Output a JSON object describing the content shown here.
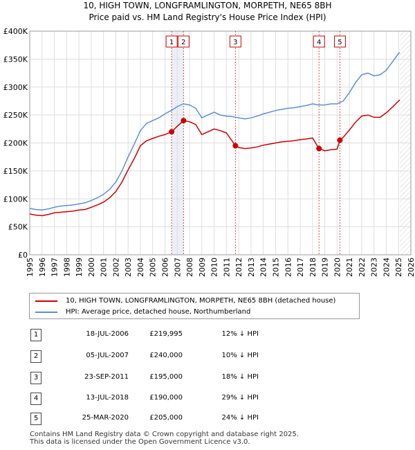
{
  "title_line1": "10, HIGH TOWN, LONGFRAMLINGTON, MORPETH, NE65 8BH",
  "title_line2": "Price paid vs. HM Land Registry's House Price Index (HPI)",
  "colors": {
    "property": "#cc0000",
    "hpi": "#5b8fd6",
    "shade": "#dde6f3",
    "grid": "#dddddd",
    "marker_line": "#cc0000"
  },
  "legend": {
    "property_label": "10, HIGH TOWN, LONGFRAMLINGTON, MORPETH, NE65 8BH (detached house)",
    "hpi_label": "HPI: Average price, detached house, Northumberland"
  },
  "transactions": [
    {
      "num": "1",
      "date": "18-JUL-2006",
      "price": "£219,995",
      "diff": "12% ↓ HPI"
    },
    {
      "num": "2",
      "date": "05-JUL-2007",
      "price": "£240,000",
      "diff": "10% ↓ HPI"
    },
    {
      "num": "3",
      "date": "23-SEP-2011",
      "price": "£195,000",
      "diff": "18% ↓ HPI"
    },
    {
      "num": "4",
      "date": "13-JUL-2018",
      "price": "£190,000",
      "diff": "29% ↓ HPI"
    },
    {
      "num": "5",
      "date": "25-MAR-2020",
      "price": "£205,000",
      "diff": "24% ↓ HPI"
    }
  ],
  "footer": "Contains HM Land Registry data © Crown copyright and database right 2025.\nThis data is licensed under the Open Government Licence v3.0.",
  "chart_data": {
    "type": "line",
    "title": "10, HIGH TOWN, LONGFRAMLINGTON, MORPETH, NE65 8BH — Price paid vs. HM Land Registry's House Price Index (HPI)",
    "xlim": [
      1995,
      2026
    ],
    "ylim": [
      0,
      400000
    ],
    "x_ticks": [
      1995,
      1996,
      1997,
      1998,
      1999,
      2000,
      2001,
      2002,
      2003,
      2004,
      2005,
      2006,
      2007,
      2008,
      2009,
      2010,
      2011,
      2012,
      2013,
      2014,
      2015,
      2016,
      2017,
      2018,
      2019,
      2020,
      2021,
      2022,
      2023,
      2024,
      2025,
      2026
    ],
    "y_ticks": [
      {
        "value": 0,
        "label": "£0"
      },
      {
        "value": 50000,
        "label": "£50K"
      },
      {
        "value": 100000,
        "label": "£100K"
      },
      {
        "value": 150000,
        "label": "£150K"
      },
      {
        "value": 200000,
        "label": "£200K"
      },
      {
        "value": 250000,
        "label": "£250K"
      },
      {
        "value": 300000,
        "label": "£300K"
      },
      {
        "value": 350000,
        "label": "£350K"
      },
      {
        "value": 400000,
        "label": "£400K"
      }
    ],
    "forecast_from": 2025.1,
    "series": [
      {
        "name": "HPI: Average price, detached house, Northumberland",
        "x": [
          1995.0,
          1995.5,
          1996.0,
          1996.5,
          1997.0,
          1997.5,
          1998.0,
          1998.5,
          1999.0,
          1999.5,
          2000.0,
          2000.5,
          2001.0,
          2001.5,
          2002.0,
          2002.5,
          2003.0,
          2003.5,
          2004.0,
          2004.5,
          2005.0,
          2005.5,
          2006.0,
          2006.5,
          2007.0,
          2007.5,
          2008.0,
          2008.5,
          2009.0,
          2009.5,
          2010.0,
          2010.5,
          2011.0,
          2011.5,
          2012.0,
          2012.5,
          2013.0,
          2013.5,
          2014.0,
          2014.5,
          2015.0,
          2015.5,
          2016.0,
          2016.5,
          2017.0,
          2017.5,
          2018.0,
          2018.5,
          2019.0,
          2019.5,
          2020.0,
          2020.5,
          2021.0,
          2021.5,
          2022.0,
          2022.5,
          2023.0,
          2023.5,
          2024.0,
          2024.5,
          2025.0,
          2025.1
        ],
        "values": [
          83000,
          81000,
          80000,
          82000,
          85000,
          87000,
          88000,
          89000,
          91000,
          93000,
          97000,
          102000,
          108000,
          117000,
          130000,
          150000,
          175000,
          198000,
          222000,
          235000,
          240000,
          245000,
          252000,
          258000,
          265000,
          270000,
          268000,
          262000,
          245000,
          250000,
          255000,
          250000,
          248000,
          247000,
          245000,
          243000,
          245000,
          248000,
          252000,
          255000,
          258000,
          260000,
          262000,
          263000,
          265000,
          267000,
          270000,
          268000,
          268000,
          270000,
          270000,
          275000,
          290000,
          308000,
          322000,
          325000,
          320000,
          322000,
          330000,
          345000,
          360000,
          362000
        ]
      },
      {
        "name": "10, HIGH TOWN, LONGFRAMLINGTON, MORPETH, NE65 8BH (detached house)",
        "x": [
          1995.0,
          1995.5,
          1996.0,
          1996.5,
          1997.0,
          1997.5,
          1998.0,
          1998.5,
          1999.0,
          1999.5,
          2000.0,
          2000.5,
          2001.0,
          2001.5,
          2002.0,
          2002.5,
          2003.0,
          2003.5,
          2004.0,
          2004.5,
          2005.0,
          2005.5,
          2006.0,
          2006.54,
          2007.0,
          2007.51,
          2008.0,
          2008.5,
          2009.0,
          2009.5,
          2010.0,
          2010.5,
          2011.0,
          2011.73,
          2012.0,
          2012.5,
          2013.0,
          2013.5,
          2014.0,
          2014.5,
          2015.0,
          2015.5,
          2016.0,
          2016.5,
          2017.0,
          2017.5,
          2018.0,
          2018.53,
          2019.0,
          2019.5,
          2020.0,
          2020.23,
          2020.5,
          2021.0,
          2021.5,
          2022.0,
          2022.5,
          2023.0,
          2023.5,
          2024.0,
          2024.5,
          2025.0,
          2025.1
        ],
        "values": [
          73000,
          71000,
          70000,
          72000,
          75000,
          76000,
          77000,
          78000,
          80000,
          81000,
          85000,
          89000,
          94000,
          102000,
          113000,
          130000,
          152000,
          172000,
          195000,
          204000,
          208000,
          212000,
          215000,
          219995,
          230000,
          240000,
          238000,
          233000,
          215000,
          220000,
          225000,
          222000,
          218000,
          195000,
          192000,
          190000,
          191000,
          193000,
          196000,
          198000,
          200000,
          202000,
          203000,
          204000,
          206000,
          207000,
          209000,
          190000,
          186000,
          188000,
          189000,
          205000,
          210000,
          223000,
          237000,
          248000,
          250000,
          246000,
          246000,
          254000,
          264000,
          275000,
          277000
        ]
      }
    ],
    "sales": [
      {
        "label": "1",
        "x": 2006.54,
        "value": 219995
      },
      {
        "label": "2",
        "x": 2007.51,
        "value": 240000
      },
      {
        "label": "3",
        "x": 2011.73,
        "value": 195000
      },
      {
        "label": "4",
        "x": 2018.53,
        "value": 190000
      },
      {
        "label": "5",
        "x": 2020.23,
        "value": 205000
      }
    ]
  }
}
